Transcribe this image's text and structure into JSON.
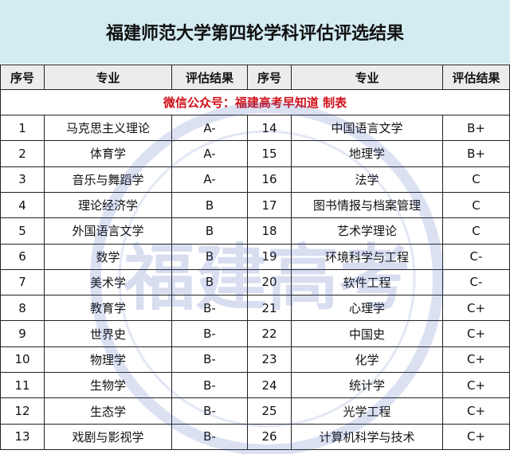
{
  "header": {
    "title": "福建师范大学第四轮学科评估评选结果"
  },
  "table": {
    "headers": [
      "序号",
      "专业",
      "评估结果",
      "序号",
      "专业",
      "评估结果"
    ],
    "subtitle": "微信公众号：福建高考早知道  制表",
    "rows": [
      [
        1,
        "马克思主义理论",
        "A-",
        14,
        "中国语言文学",
        "B+"
      ],
      [
        2,
        "体育学",
        "A-",
        15,
        "地理学",
        "B+"
      ],
      [
        3,
        "音乐与舞蹈学",
        "A-",
        16,
        "法学",
        "C"
      ],
      [
        4,
        "理论经济学",
        "B",
        17,
        "图书情报与档案管理",
        "C"
      ],
      [
        5,
        "外国语言文学",
        "B",
        18,
        "艺术学理论",
        "C"
      ],
      [
        6,
        "数学",
        "B",
        19,
        "环境科学与工程",
        "C-"
      ],
      [
        7,
        "美术学",
        "B",
        20,
        "软件工程",
        "C-"
      ],
      [
        8,
        "教育学",
        "B-",
        21,
        "心理学",
        "C+"
      ],
      [
        9,
        "世界史",
        "B-",
        22,
        "中国史",
        "C+"
      ],
      [
        10,
        "物理学",
        "B-",
        23,
        "化学",
        "C+"
      ],
      [
        11,
        "生物学",
        "B-",
        24,
        "统计学",
        "C+"
      ],
      [
        12,
        "生态学",
        "B-",
        25,
        "光学工程",
        "C+"
      ],
      [
        13,
        "戏剧与影视学",
        "B-",
        26,
        "计算机科学与技术",
        "C+"
      ]
    ]
  },
  "watermark": {
    "text": "福建高考"
  }
}
